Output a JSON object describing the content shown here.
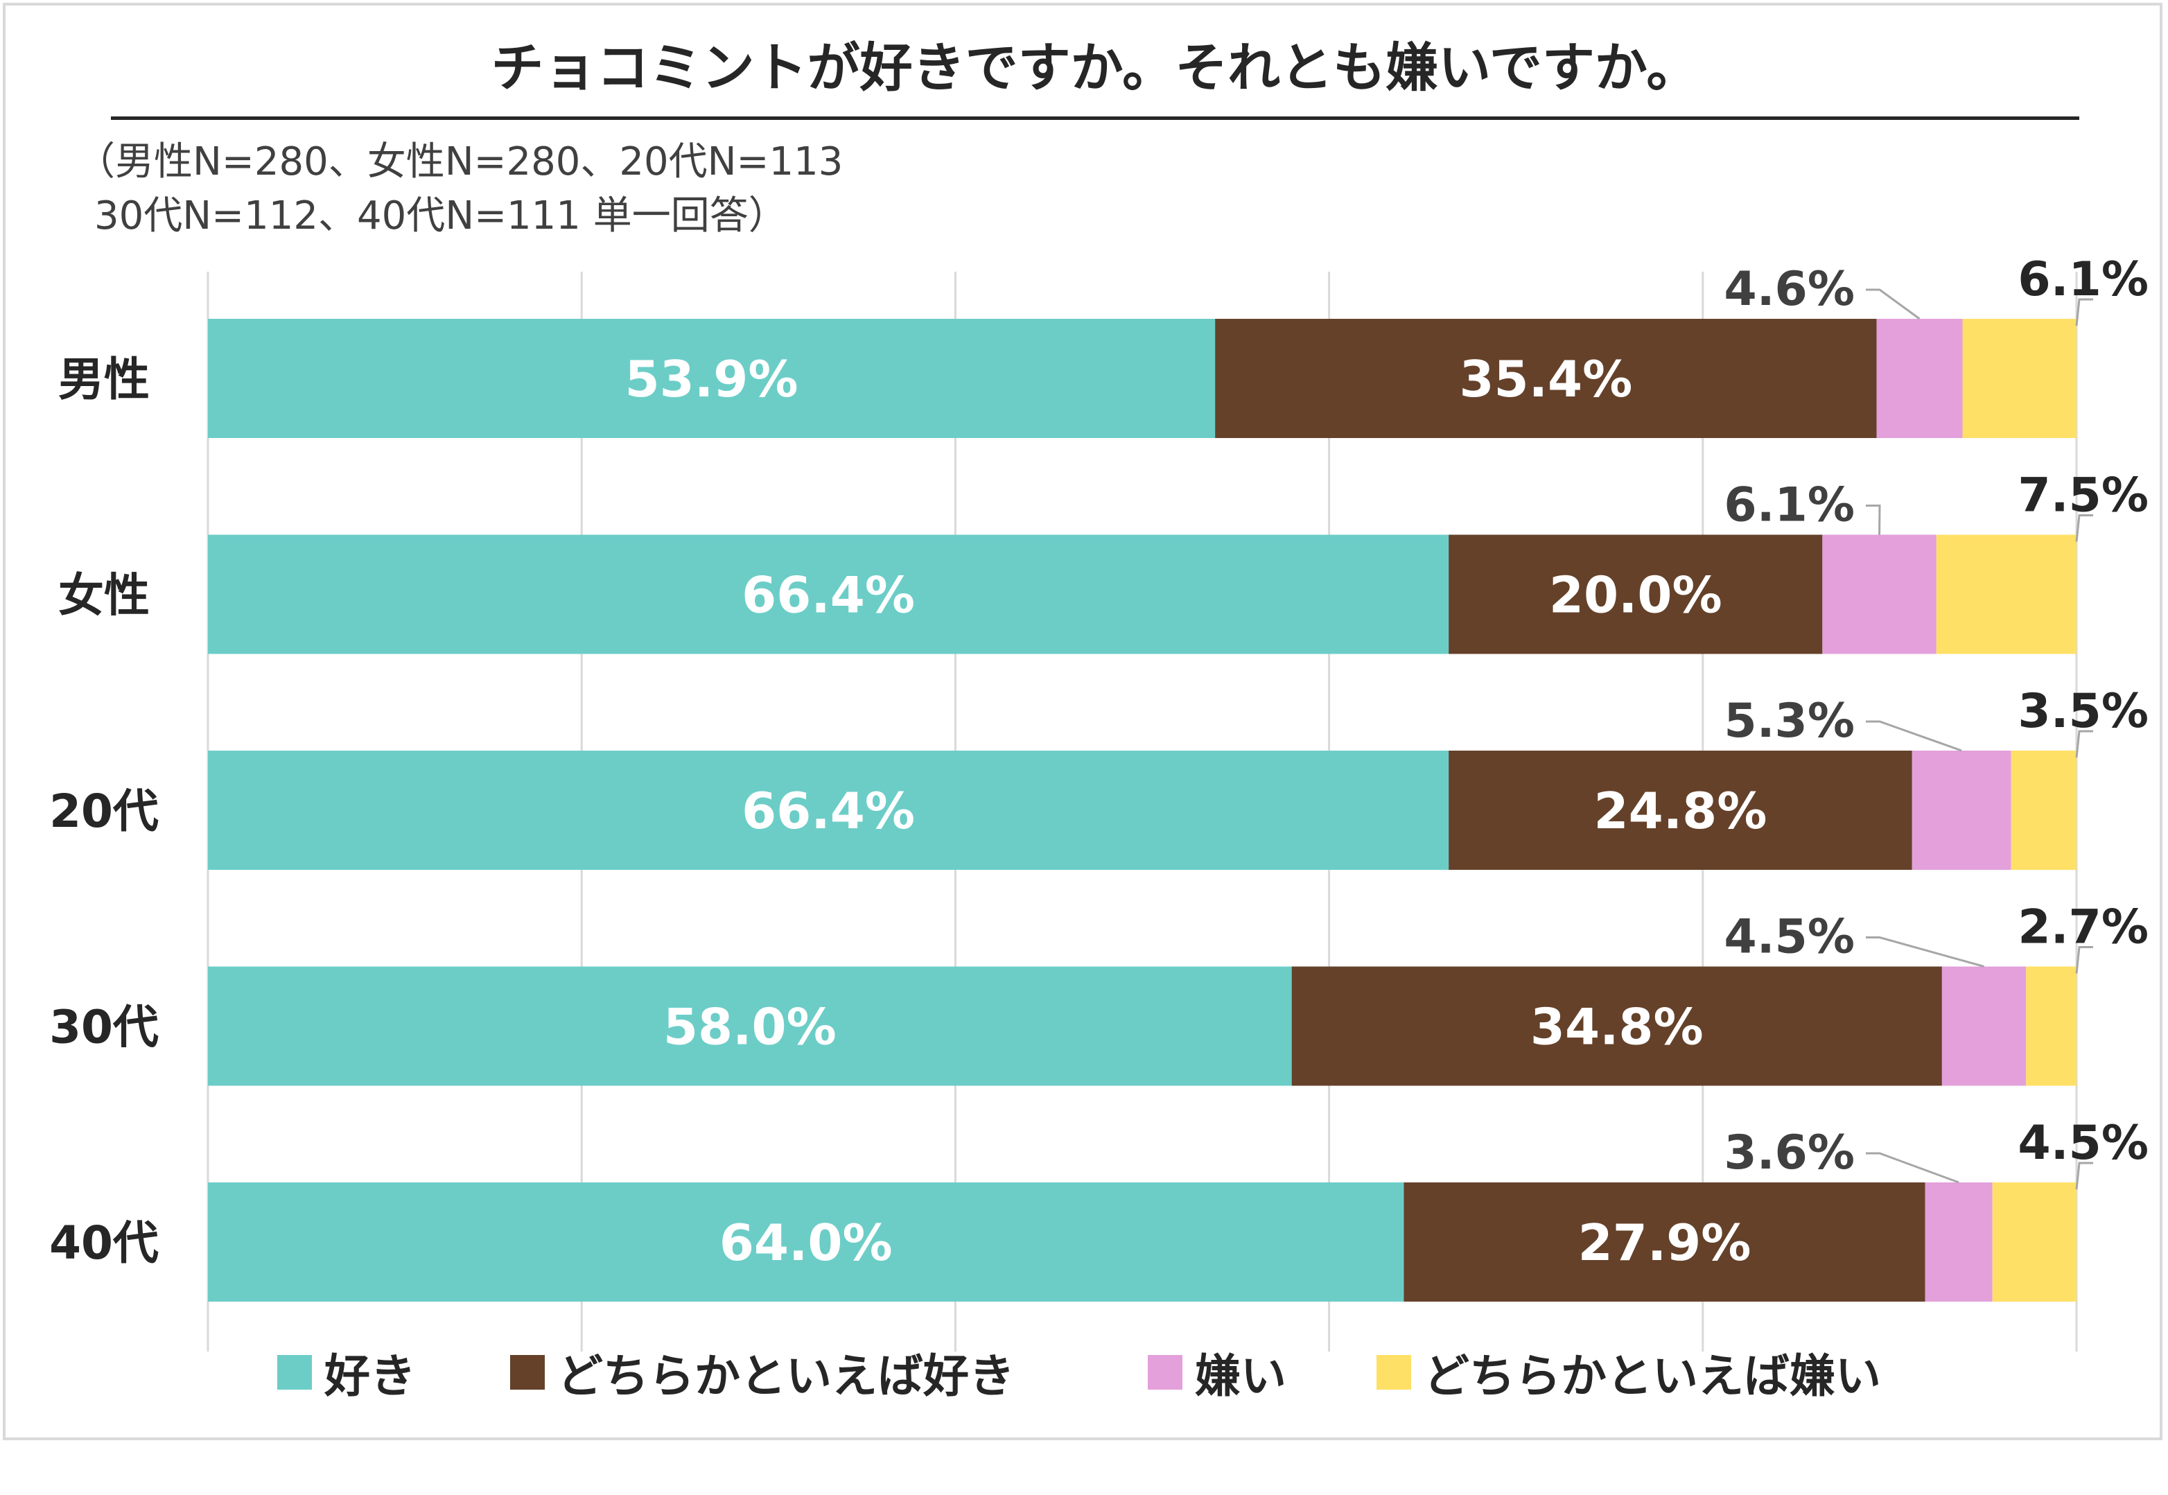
{
  "chart_data": {
    "type": "bar",
    "orientation": "horizontal",
    "stacked": true,
    "title": "チョコミントが好きですか。それとも嫌いですか。",
    "subtitle_lines": [
      "（男性N=280、女性N=280、20代N=113",
      "30代N=112、40代N=111 単一回答）"
    ],
    "categories": [
      "男性",
      "女性",
      "20代",
      "30代",
      "40代"
    ],
    "series": [
      {
        "name": "好き",
        "color": "#6CCDC7",
        "values": [
          53.9,
          66.4,
          66.4,
          58.0,
          64.0
        ],
        "labels": [
          "53.9%",
          "66.4%",
          "66.4%",
          "58.0%",
          "64.0%"
        ]
      },
      {
        "name": "どちらかといえば好き",
        "color": "#65412A",
        "values": [
          35.4,
          20.0,
          24.8,
          34.8,
          27.9
        ],
        "labels": [
          "35.4%",
          "20.0%",
          "24.8%",
          "34.8%",
          "27.9%"
        ]
      },
      {
        "name": "嫌い",
        "color": "#E3A0DB",
        "values": [
          4.6,
          6.1,
          5.3,
          4.5,
          3.6
        ],
        "labels": [
          "4.6%",
          "6.1%",
          "5.3%",
          "4.5%",
          "3.6%"
        ]
      },
      {
        "name": "どちらかといえば嫌い",
        "color": "#FFE066",
        "values": [
          6.1,
          7.5,
          3.5,
          2.7,
          4.5
        ],
        "labels": [
          "6.1%",
          "7.5%",
          "3.5%",
          "2.7%",
          "4.5%"
        ]
      }
    ],
    "xlim": [
      0,
      100
    ],
    "grid": true,
    "legend_position": "bottom"
  }
}
